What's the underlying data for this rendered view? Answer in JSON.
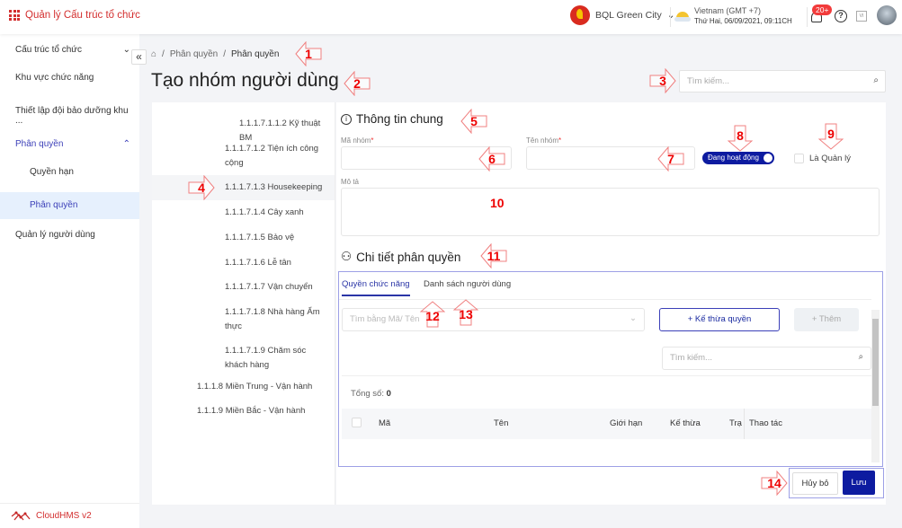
{
  "header": {
    "app_title": "Quản lý Cấu trúc tổ chức",
    "org_name": "BQL Green City",
    "timezone": "Vietnam (GMT +7)",
    "datetime": "Thứ Hai, 06/09/2021, 09:11CH",
    "notification_count": "20+",
    "help": "?",
    "lang": "VI"
  },
  "sidebar": {
    "items": [
      {
        "label": "Cấu trúc tổ chức",
        "chevron": "⌄"
      },
      {
        "label": "Khu vực chức năng"
      },
      {
        "label": "Thiết lập đội bảo dưỡng khu ..."
      },
      {
        "label": "Phân quyền",
        "chevron": "⌃"
      },
      {
        "label": "Quyền hạn"
      },
      {
        "label": "Phân quyền"
      },
      {
        "label": "Quản lý người dùng"
      }
    ],
    "footer": "CloudHMS v2",
    "collapse": "«"
  },
  "breadcrumb": [
    "Phân quyền",
    "Phân quyền"
  ],
  "page_title": "Tạo nhóm người dùng",
  "search_placeholder": "Tìm kiếm...",
  "tree": [
    "1.1.1.7.1.1.2 Kỹ thuật BM",
    "1.1.1.7.1.2 Tiện ích công cộng",
    "1.1.1.7.1.3 Housekeeping",
    "1.1.1.7.1.4 Cây xanh",
    "1.1.1.7.1.5 Bảo vệ",
    "1.1.1.7.1.6 Lễ tân",
    "1.1.1.7.1.7 Vận chuyển",
    "1.1.1.7.1.8 Nhà hàng Ẩm thực",
    "1.1.1.7.1.9 Chăm sóc khách hàng",
    "1.1.1.8 Miền Trung - Vận hành",
    "1.1.1.9 Miền Bắc - Vận hành"
  ],
  "form": {
    "general_title": "Thông tin chung",
    "code_label": "Mã nhóm",
    "name_label": "Tên nhóm",
    "required": "*",
    "status_toggle": "Đang hoạt động",
    "status_on": true,
    "manager_label": "Là Quản lý",
    "manager_checked": false,
    "desc_label": "Mô tả",
    "detail_title": "Chi tiết phân quyền"
  },
  "tabs": [
    {
      "label": "Quyền chức năng",
      "active": true
    },
    {
      "label": "Danh sách người dùng",
      "active": false
    }
  ],
  "permissions": {
    "select_placeholder": "Tìm bằng Mã/ Tên",
    "inherit_button": "Kế thừa quyền",
    "add_button": "Thêm",
    "search_placeholder": "Tìm kiếm...",
    "total_label": "Tổng số:",
    "total_value": "0",
    "columns": [
      "Mã",
      "Tên",
      "Giới hạn",
      "Kế thừa",
      "Trạng thái",
      "Thao tác"
    ]
  },
  "actions": {
    "cancel": "Hủy bỏ",
    "save": "Lưu"
  },
  "callouts": [
    "1",
    "2",
    "3",
    "4",
    "5",
    "6",
    "7",
    "8",
    "9",
    "10",
    "11",
    "12",
    "13",
    "14"
  ],
  "colors": {
    "brand": "#d32f2f",
    "primary": "#0d1ba0",
    "annotation": "#ee0000"
  }
}
